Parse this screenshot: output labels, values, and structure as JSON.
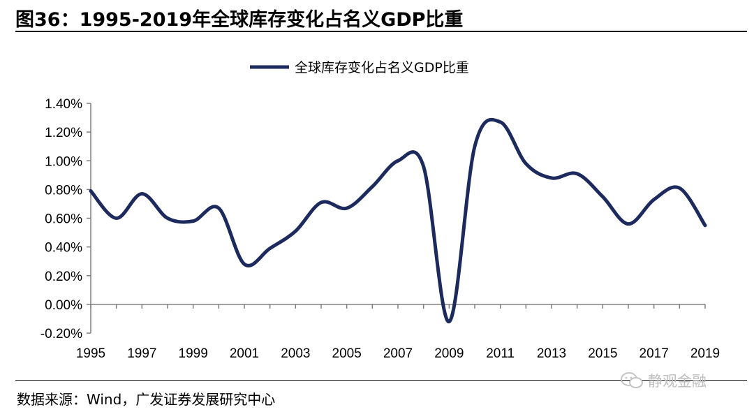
{
  "header": {
    "title": "图36：1995-2019年全球库存变化占名义GDP比重"
  },
  "footer": {
    "source": "数据来源：Wind，广发证券发展研究中心",
    "watermark": "静观金融"
  },
  "colors": {
    "series": "#1c2a5e",
    "axis": "#7f7f7f"
  },
  "chart_data": {
    "type": "line",
    "title": "图36：1995-2019年全球库存变化占名义GDP比重",
    "xlabel": "",
    "ylabel": "",
    "ylim": [
      -0.2,
      1.4
    ],
    "yticks": [
      "1.40%",
      "1.20%",
      "1.00%",
      "0.80%",
      "0.60%",
      "0.40%",
      "0.20%",
      "0.00%",
      "-0.20%"
    ],
    "ytick_values": [
      1.4,
      1.2,
      1.0,
      0.8,
      0.6,
      0.4,
      0.2,
      0.0,
      -0.2
    ],
    "xticks": [
      "1995",
      "1997",
      "1999",
      "2001",
      "2003",
      "2005",
      "2007",
      "2009",
      "2011",
      "2013",
      "2015",
      "2017",
      "2019"
    ],
    "xtick_values": [
      1995,
      1997,
      1999,
      2001,
      2003,
      2005,
      2007,
      2009,
      2011,
      2013,
      2015,
      2017,
      2019
    ],
    "legend": "top-center",
    "grid": false,
    "series": [
      {
        "name": "全球库存变化占名义GDP比重",
        "x": [
          1995,
          1996,
          1997,
          1998,
          1999,
          2000,
          2001,
          2002,
          2003,
          2004,
          2005,
          2006,
          2007,
          2008,
          2009,
          2010,
          2011,
          2012,
          2013,
          2014,
          2015,
          2016,
          2017,
          2018,
          2019
        ],
        "values": [
          0.79,
          0.6,
          0.77,
          0.6,
          0.58,
          0.67,
          0.28,
          0.39,
          0.51,
          0.71,
          0.67,
          0.82,
          1.0,
          0.96,
          -0.12,
          1.1,
          1.27,
          0.98,
          0.88,
          0.91,
          0.75,
          0.56,
          0.73,
          0.81,
          0.55
        ]
      }
    ]
  }
}
